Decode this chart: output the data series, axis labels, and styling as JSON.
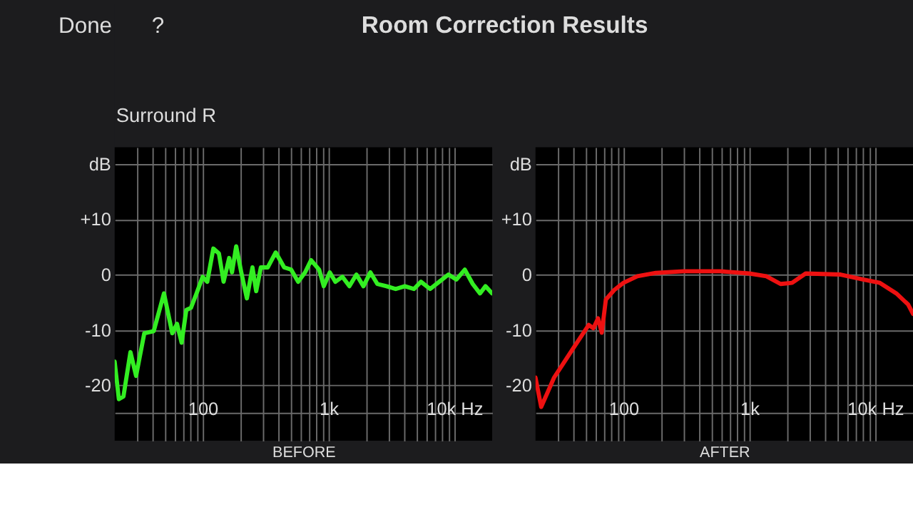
{
  "chart_data": [
    {
      "type": "line",
      "title": "Room Correction Results",
      "subtitle": "Surround R",
      "annotations": [
        "Done",
        "?"
      ],
      "xlabel": "BEFORE",
      "log": "x",
      "grid": true,
      "line_style": "solid",
      "x": [
        20,
        21.6,
        23.5,
        26.7,
        29.6,
        34.4,
        40.9,
        49.3,
        57.4,
        62.6,
        68.1,
        74.2,
        80.8,
        89.5,
        100,
        108.9,
        121.7,
        134.8,
        146.8,
        162.6,
        171.2,
        184.9,
        202.9,
        224.8,
        249,
        266.6,
        290.3,
        329.6,
        381.2,
        445,
        505,
        574,
        652,
        728,
        843,
        918,
        1025,
        1136,
        1292,
        1468,
        1668,
        1897,
        2155,
        2448,
        2894,
        3422,
        4045,
        4782,
        5435,
        6426,
        7597,
        8981,
        10383,
        12126,
        14020,
        16010,
        17700,
        20000
      ],
      "series": [
        {
          "color": "#33ee22",
          "values": [
            -15.7,
            -22.5,
            -22,
            -14,
            -18.3,
            -10.6,
            -10.2,
            -3.4,
            -10.6,
            -8.9,
            -12.3,
            -6.4,
            -6,
            -3.4,
            -0.4,
            -1.3,
            4.7,
            3.8,
            -1.3,
            3,
            0.4,
            5.1,
            0.4,
            -4.3,
            1.3,
            -3,
            1.3,
            1.3,
            4,
            1.3,
            0.9,
            -1.3,
            0.4,
            2.6,
            0.9,
            -2.1,
            0.4,
            -1.3,
            -0.4,
            -2.1,
            0,
            -2.1,
            0.4,
            -1.7,
            -2.1,
            -2.6,
            -2.1,
            -2.6,
            -1.3,
            -2.6,
            -1.3,
            0,
            -0.9,
            0.9,
            -1.7,
            -3.4,
            -2.1,
            -3.4
          ]
        }
      ],
      "xlim": [
        20,
        20000
      ],
      "ylim": [
        -30,
        23
      ],
      "xticks": [
        {
          "value": 30,
          "label": null
        },
        {
          "value": 40,
          "label": null
        },
        {
          "value": 50,
          "label": null
        },
        {
          "value": 60,
          "label": null
        },
        {
          "value": 70,
          "label": null
        },
        {
          "value": 80,
          "label": null
        },
        {
          "value": 90,
          "label": null
        },
        {
          "value": 100,
          "label": "100"
        },
        {
          "value": 200,
          "label": null
        },
        {
          "value": 300,
          "label": null
        },
        {
          "value": 400,
          "label": null
        },
        {
          "value": 500,
          "label": null
        },
        {
          "value": 600,
          "label": null
        },
        {
          "value": 700,
          "label": null
        },
        {
          "value": 800,
          "label": null
        },
        {
          "value": 900,
          "label": null
        },
        {
          "value": 1000,
          "label": "1k"
        },
        {
          "value": 2000,
          "label": null
        },
        {
          "value": 3000,
          "label": null
        },
        {
          "value": 4000,
          "label": null
        },
        {
          "value": 5000,
          "label": null
        },
        {
          "value": 6000,
          "label": null
        },
        {
          "value": 7000,
          "label": null
        },
        {
          "value": 8000,
          "label": null
        },
        {
          "value": 9000,
          "label": null
        },
        {
          "value": 10000,
          "label": "10k Hz"
        }
      ],
      "yticks": [
        {
          "value": 20,
          "label": "dB"
        },
        {
          "value": 10,
          "label": "+10"
        },
        0,
        -10,
        -20,
        {
          "value": -25,
          "label": null
        }
      ]
    },
    {
      "type": "line",
      "xlabel": "AFTER",
      "log": "x",
      "grid": true,
      "line_style": "solid",
      "x": [
        20,
        22.2,
        28.1,
        39.4,
        53,
        57.7,
        62.8,
        67.2,
        72.5,
        84.4,
        100,
        128.9,
        180.9,
        300,
        590,
        1000,
        1367,
        1773,
        2188,
        2806,
        5323,
        8112,
        10910,
        14740,
        18280,
        20000
      ],
      "series": [
        {
          "color": "#ee1111",
          "values": [
            -18.6,
            -23.9,
            -18.6,
            -13.5,
            -9.1,
            -9.7,
            -7.9,
            -10.5,
            -4.5,
            -2.8,
            -1.5,
            -0.3,
            0.3,
            0.6,
            0.6,
            0.2,
            -0.3,
            -1.7,
            -1.5,
            0.2,
            0,
            -0.9,
            -1.5,
            -3.4,
            -5.4,
            -7.1
          ]
        }
      ],
      "xlim": [
        20,
        20000
      ],
      "ylim": [
        -30,
        23
      ],
      "xticks": [
        {
          "value": 30,
          "label": null
        },
        {
          "value": 40,
          "label": null
        },
        {
          "value": 50,
          "label": null
        },
        {
          "value": 60,
          "label": null
        },
        {
          "value": 70,
          "label": null
        },
        {
          "value": 80,
          "label": null
        },
        {
          "value": 90,
          "label": null
        },
        {
          "value": 100,
          "label": "100"
        },
        {
          "value": 200,
          "label": null
        },
        {
          "value": 300,
          "label": null
        },
        {
          "value": 400,
          "label": null
        },
        {
          "value": 500,
          "label": null
        },
        {
          "value": 600,
          "label": null
        },
        {
          "value": 700,
          "label": null
        },
        {
          "value": 800,
          "label": null
        },
        {
          "value": 900,
          "label": null
        },
        {
          "value": 1000,
          "label": "1k"
        },
        {
          "value": 2000,
          "label": null
        },
        {
          "value": 3000,
          "label": null
        },
        {
          "value": 4000,
          "label": null
        },
        {
          "value": 5000,
          "label": null
        },
        {
          "value": 6000,
          "label": null
        },
        {
          "value": 7000,
          "label": null
        },
        {
          "value": 8000,
          "label": null
        },
        {
          "value": 9000,
          "label": null
        },
        {
          "value": 10000,
          "label": "10k Hz"
        }
      ],
      "yticks": [
        {
          "value": 20,
          "label": "dB"
        },
        {
          "value": 10,
          "label": "+10"
        },
        0,
        -10,
        -20,
        {
          "value": -25,
          "label": null
        }
      ]
    }
  ]
}
